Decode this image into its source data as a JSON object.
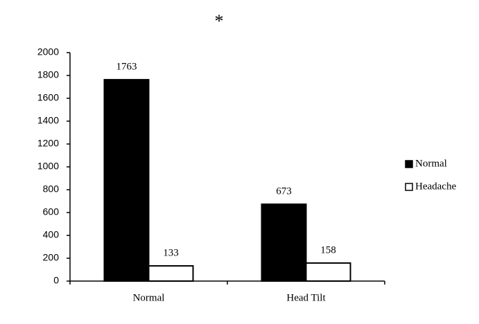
{
  "chart_data": {
    "type": "bar",
    "title": "*",
    "categories": [
      "Normal",
      "Head Tilt"
    ],
    "series": [
      {
        "name": "Normal",
        "color": "#000000",
        "edge_color": "#000000",
        "values": [
          1763,
          673
        ]
      },
      {
        "name": "Headache",
        "color": "#ffffff",
        "edge_color": "#000000",
        "values": [
          133,
          158
        ]
      }
    ],
    "ylim": [
      0,
      2000
    ],
    "yticks": [
      0,
      200,
      400,
      600,
      800,
      1000,
      1200,
      1400,
      1600,
      1800,
      2000
    ],
    "grid": false,
    "legend": "right",
    "data_labels": true
  }
}
